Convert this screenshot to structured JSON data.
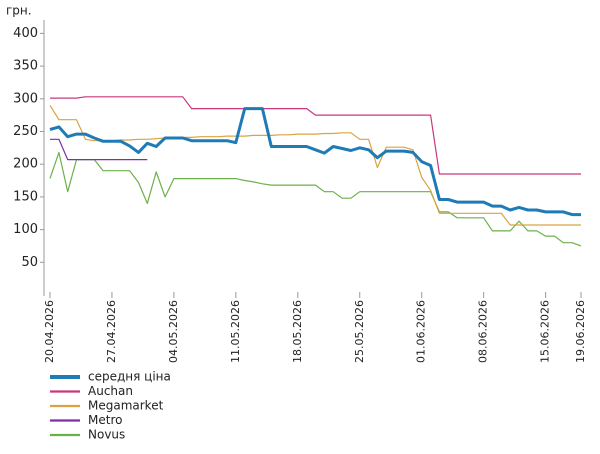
{
  "chart_data": {
    "type": "line",
    "ylabel": "грн.",
    "x": [
      "20.04.2026",
      "21.04.2026",
      "22.04.2026",
      "23.04.2026",
      "24.04.2026",
      "25.04.2026",
      "26.04.2026",
      "27.04.2026",
      "28.04.2026",
      "29.04.2026",
      "30.04.2026",
      "01.05.2026",
      "02.05.2026",
      "03.05.2026",
      "04.05.2026",
      "05.05.2026",
      "06.05.2026",
      "07.05.2026",
      "08.05.2026",
      "09.05.2026",
      "10.05.2026",
      "11.05.2026",
      "12.05.2026",
      "13.05.2026",
      "14.05.2026",
      "15.05.2026",
      "16.05.2026",
      "17.05.2026",
      "18.05.2026",
      "19.05.2026",
      "20.05.2026",
      "21.05.2026",
      "22.05.2026",
      "23.05.2026",
      "24.05.2026",
      "25.05.2026",
      "26.05.2026",
      "27.05.2026",
      "28.05.2026",
      "29.05.2026",
      "30.05.2026",
      "31.05.2026",
      "01.06.2026",
      "02.06.2026",
      "03.06.2026",
      "04.06.2026",
      "05.06.2026",
      "06.06.2026",
      "07.06.2026",
      "08.06.2026",
      "09.06.2026",
      "10.06.2026",
      "11.06.2026",
      "12.06.2026",
      "13.06.2026",
      "14.06.2026",
      "15.06.2026",
      "16.06.2026",
      "17.06.2026",
      "18.06.2026",
      "19.06.2026"
    ],
    "xticks": [
      "20.04.2026",
      "27.04.2026",
      "04.05.2026",
      "11.05.2026",
      "18.05.2026",
      "25.05.2026",
      "01.06.2026",
      "08.06.2026",
      "15.06.2026",
      "19.06.2026"
    ],
    "ylim": [
      0,
      400
    ],
    "yticks": [
      50,
      100,
      150,
      200,
      250,
      300,
      350,
      400
    ],
    "series": [
      {
        "name": "середня ціна",
        "color": "#1f7bb6",
        "width": 3,
        "values": [
          253,
          257,
          242,
          246,
          246,
          240,
          235,
          235,
          235,
          228,
          218,
          232,
          227,
          240,
          240,
          240,
          236,
          236,
          236,
          236,
          236,
          233,
          285,
          285,
          285,
          227,
          227,
          227,
          227,
          227,
          222,
          217,
          227,
          224,
          221,
          225,
          222,
          210,
          220,
          220,
          220,
          218,
          204,
          198,
          146,
          146,
          142,
          142,
          142,
          142,
          136,
          136,
          130,
          134,
          130,
          130,
          127,
          127,
          127,
          123,
          123
        ]
      },
      {
        "name": "Auchan",
        "color": "#c9387c",
        "width": 1.2,
        "values": [
          301,
          301,
          301,
          301,
          303,
          303,
          303,
          303,
          303,
          303,
          303,
          303,
          303,
          303,
          303,
          303,
          285,
          285,
          285,
          285,
          285,
          285,
          285,
          285,
          285,
          285,
          285,
          285,
          285,
          285,
          275,
          275,
          275,
          275,
          275,
          275,
          275,
          275,
          275,
          275,
          275,
          275,
          275,
          275,
          185,
          185,
          185,
          185,
          185,
          185,
          185,
          185,
          185,
          185,
          185,
          185,
          185,
          185,
          185,
          185,
          185
        ]
      },
      {
        "name": "Megamarket",
        "color": "#d9a340",
        "width": 1.2,
        "values": [
          290,
          268,
          268,
          268,
          238,
          236,
          236,
          236,
          237,
          237,
          238,
          238,
          239,
          240,
          240,
          241,
          241,
          242,
          242,
          242,
          243,
          243,
          243,
          244,
          244,
          244,
          245,
          245,
          246,
          246,
          246,
          247,
          247,
          248,
          248,
          238,
          238,
          195,
          226,
          226,
          226,
          222,
          180,
          160,
          125,
          125,
          125,
          125,
          125,
          125,
          125,
          125,
          107,
          107,
          107,
          107,
          107,
          107,
          107,
          107,
          107
        ]
      },
      {
        "name": "Metro",
        "color": "#7b2fa8",
        "width": 1.2,
        "values": [
          238,
          238,
          207,
          207,
          207,
          207,
          207,
          207,
          207,
          207,
          207,
          207,
          null,
          null,
          null,
          null,
          null,
          null,
          null,
          null,
          null,
          null,
          null,
          null,
          null,
          null,
          null,
          null,
          null,
          null,
          null,
          null,
          null,
          null,
          null,
          null,
          null,
          null,
          null,
          null,
          null,
          null,
          null,
          null,
          null,
          null,
          null,
          null,
          null,
          null,
          null,
          null,
          null,
          null,
          null,
          null,
          null,
          null,
          null,
          null,
          null
        ]
      },
      {
        "name": "Novus",
        "color": "#6cb04a",
        "width": 1.2,
        "values": [
          178,
          218,
          158,
          207,
          207,
          207,
          190,
          190,
          190,
          190,
          172,
          140,
          188,
          150,
          178,
          178,
          178,
          178,
          178,
          178,
          178,
          178,
          175,
          173,
          170,
          168,
          168,
          168,
          168,
          168,
          168,
          158,
          158,
          148,
          148,
          158,
          158,
          158,
          158,
          158,
          158,
          158,
          158,
          158,
          127,
          127,
          118,
          118,
          118,
          118,
          98,
          98,
          98,
          113,
          98,
          98,
          90,
          90,
          80,
          80,
          75
        ]
      }
    ]
  }
}
